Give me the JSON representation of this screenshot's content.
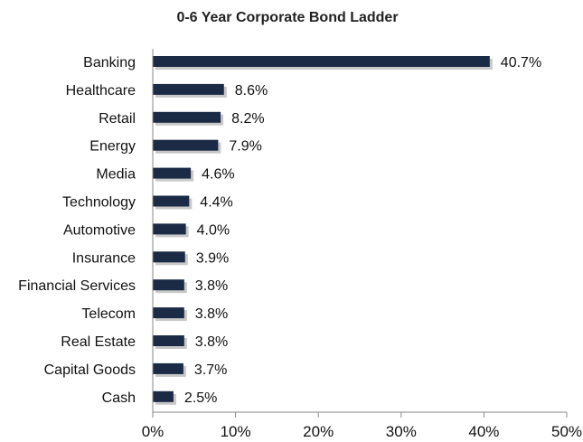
{
  "chart_data": {
    "type": "bar",
    "orientation": "horizontal",
    "title": "0-6 Year Corporate Bond Ladder",
    "xlabel": "",
    "ylabel": "",
    "categories": [
      "Banking",
      "Healthcare",
      "Retail",
      "Energy",
      "Media",
      "Technology",
      "Automotive",
      "Insurance",
      "Financial Services",
      "Telecom",
      "Real Estate",
      "Capital Goods",
      "Cash"
    ],
    "values": [
      40.7,
      8.6,
      8.2,
      7.9,
      4.6,
      4.4,
      4.0,
      3.9,
      3.8,
      3.8,
      3.8,
      3.7,
      2.5
    ],
    "value_labels": [
      "40.7%",
      "8.6%",
      "8.2%",
      "7.9%",
      "4.6%",
      "4.4%",
      "4.0%",
      "3.9%",
      "3.8%",
      "3.8%",
      "3.8%",
      "3.7%",
      "2.5%"
    ],
    "xlim": [
      0,
      50
    ],
    "xticks": [
      0,
      10,
      20,
      30,
      40,
      50
    ],
    "xtick_labels": [
      "0%",
      "10%",
      "20%",
      "30%",
      "40%",
      "50%"
    ],
    "grid": false,
    "legend": "none",
    "bar_color": "#1b2a45",
    "shadow_color": "#c8c8c8"
  }
}
